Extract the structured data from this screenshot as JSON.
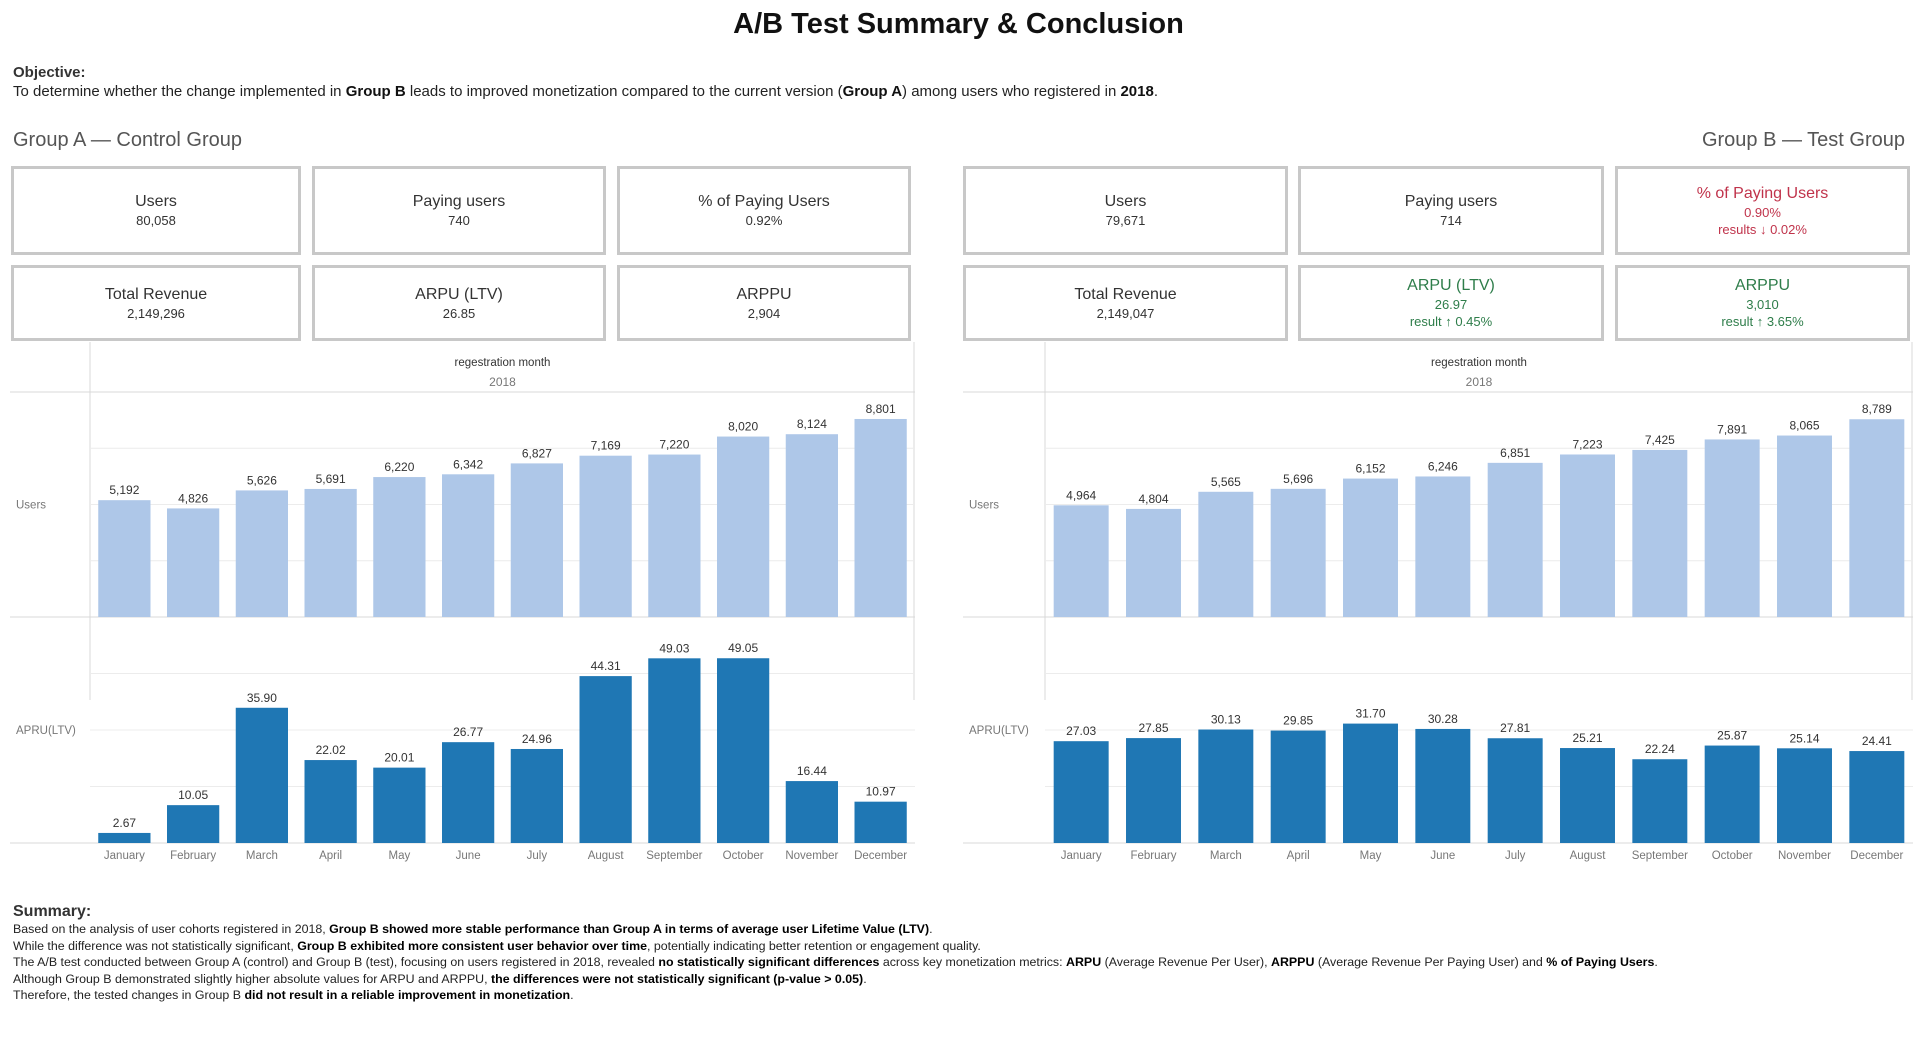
{
  "title": "A/B Test Summary & Conclusion",
  "objective": {
    "label": "Objective:",
    "text_1": "To determine whether the change implemented in ",
    "bold_1": "Group B",
    "text_2": " leads to improved monetization compared to the current version (",
    "bold_2": "Group A",
    "text_3": ") among users who registered in ",
    "bold_3": "2018",
    "text_4": "."
  },
  "group_a": {
    "title": "Group A — Control Group",
    "cards": [
      {
        "label": "Users",
        "value": "80,058"
      },
      {
        "label": "Paying users",
        "value": "740"
      },
      {
        "label": "% of Paying Users",
        "value": "0.92%"
      },
      {
        "label": "Total Revenue",
        "value": "2,149,296"
      },
      {
        "label": "ARPU (LTV)",
        "value": "26.85"
      },
      {
        "label": "ARPPU",
        "value": "2,904"
      }
    ]
  },
  "group_b": {
    "title": "Group B — Test Group",
    "cards": [
      {
        "label": "Users",
        "value": "79,671"
      },
      {
        "label": "Paying users",
        "value": "714"
      },
      {
        "label": "% of Paying Users",
        "value": "0.90%",
        "result": "results ↓ 0.02%"
      },
      {
        "label": "Total Revenue",
        "value": "2,149,047"
      },
      {
        "label": "ARPU (LTV)",
        "value": "26.97",
        "result": "result ↑ 0.45%"
      },
      {
        "label": "ARPPU",
        "value": "3,010",
        "result": "result ↑ 3.65%"
      }
    ]
  },
  "colors": {
    "users_bar": "#aec7e8",
    "arpu_bar": "#1f77b4",
    "negative": "#c0334b",
    "positive": "#2e7d4a"
  },
  "chart_data": [
    {
      "type": "bar",
      "group": "Group A",
      "column_header": "regestration month",
      "column_year": "2018",
      "categories": [
        "January",
        "February",
        "March",
        "April",
        "May",
        "June",
        "July",
        "August",
        "September",
        "October",
        "November",
        "December"
      ],
      "series": [
        {
          "name": "Users",
          "values": [
            5192,
            4826,
            5626,
            5691,
            6220,
            6342,
            6827,
            7169,
            7220,
            8020,
            8124,
            8801
          ],
          "labels": [
            "5,192",
            "4,826",
            "5,626",
            "5,691",
            "6,220",
            "6,342",
            "6,827",
            "7,169",
            "7,220",
            "8,020",
            "8,124",
            "8,801"
          ]
        },
        {
          "name": "APRU(LTV)",
          "values": [
            2.67,
            10.05,
            35.9,
            22.02,
            20.01,
            26.77,
            24.96,
            44.31,
            49.03,
            49.05,
            16.44,
            10.97
          ],
          "labels": [
            "2.67",
            "10.05",
            "35.90",
            "22.02",
            "20.01",
            "26.77",
            "24.96",
            "44.31",
            "49.03",
            "49.05",
            "16.44",
            "10.97"
          ]
        }
      ],
      "grid": true
    },
    {
      "type": "bar",
      "group": "Group B",
      "column_header": "regestration month",
      "column_year": "2018",
      "categories": [
        "January",
        "February",
        "March",
        "April",
        "May",
        "June",
        "July",
        "August",
        "September",
        "October",
        "November",
        "December"
      ],
      "series": [
        {
          "name": "Users",
          "values": [
            4964,
            4804,
            5565,
            5696,
            6152,
            6246,
            6851,
            7223,
            7425,
            7891,
            8065,
            8789
          ],
          "labels": [
            "4,964",
            "4,804",
            "5,565",
            "5,696",
            "6,152",
            "6,246",
            "6,851",
            "7,223",
            "7,425",
            "7,891",
            "8,065",
            "8,789"
          ]
        },
        {
          "name": "APRU(LTV)",
          "values": [
            27.03,
            27.85,
            30.13,
            29.85,
            31.7,
            30.28,
            27.81,
            25.21,
            22.24,
            25.87,
            25.14,
            24.41
          ],
          "labels": [
            "27.03",
            "27.85",
            "30.13",
            "29.85",
            "31.70",
            "30.28",
            "27.81",
            "25.21",
            "22.24",
            "25.87",
            "25.14",
            "24.41"
          ]
        }
      ],
      "grid": true
    }
  ],
  "summary": {
    "header": "Summary:",
    "l1_a": "Based on the analysis of user cohorts registered in 2018, ",
    "l1_b": "Group B showed more stable performance than Group A in terms of average user Lifetime Value (LTV)",
    "l1_c": ".",
    "l2_a": "While the difference was not statistically significant, ",
    "l2_b": "Group B exhibited more consistent user behavior over time",
    "l2_c": ", potentially indicating better retention or engagement quality.",
    "l3_a": "The A/B test conducted between Group A (control) and Group B (test), focusing on users registered in 2018, revealed ",
    "l3_b": "no statistically significant differences",
    "l3_c": " across key monetization metrics: ",
    "l3_d": "ARPU",
    "l3_e": " (Average Revenue Per User), ",
    "l3_f": "ARPPU",
    "l3_g": " (Average Revenue Per Paying User) and ",
    "l3_h": "% of Paying Users",
    "l3_i": ".",
    "l4_a": "Although Group B demonstrated slightly higher absolute values for ARPU and ARPPU, ",
    "l4_b": "the differences were not statistically significant (p-value > 0.05)",
    "l4_c": ".",
    "l5_a": "Therefore, the tested changes in Group B ",
    "l5_b": "did not result in a reliable improvement in monetization",
    "l5_c": "."
  }
}
